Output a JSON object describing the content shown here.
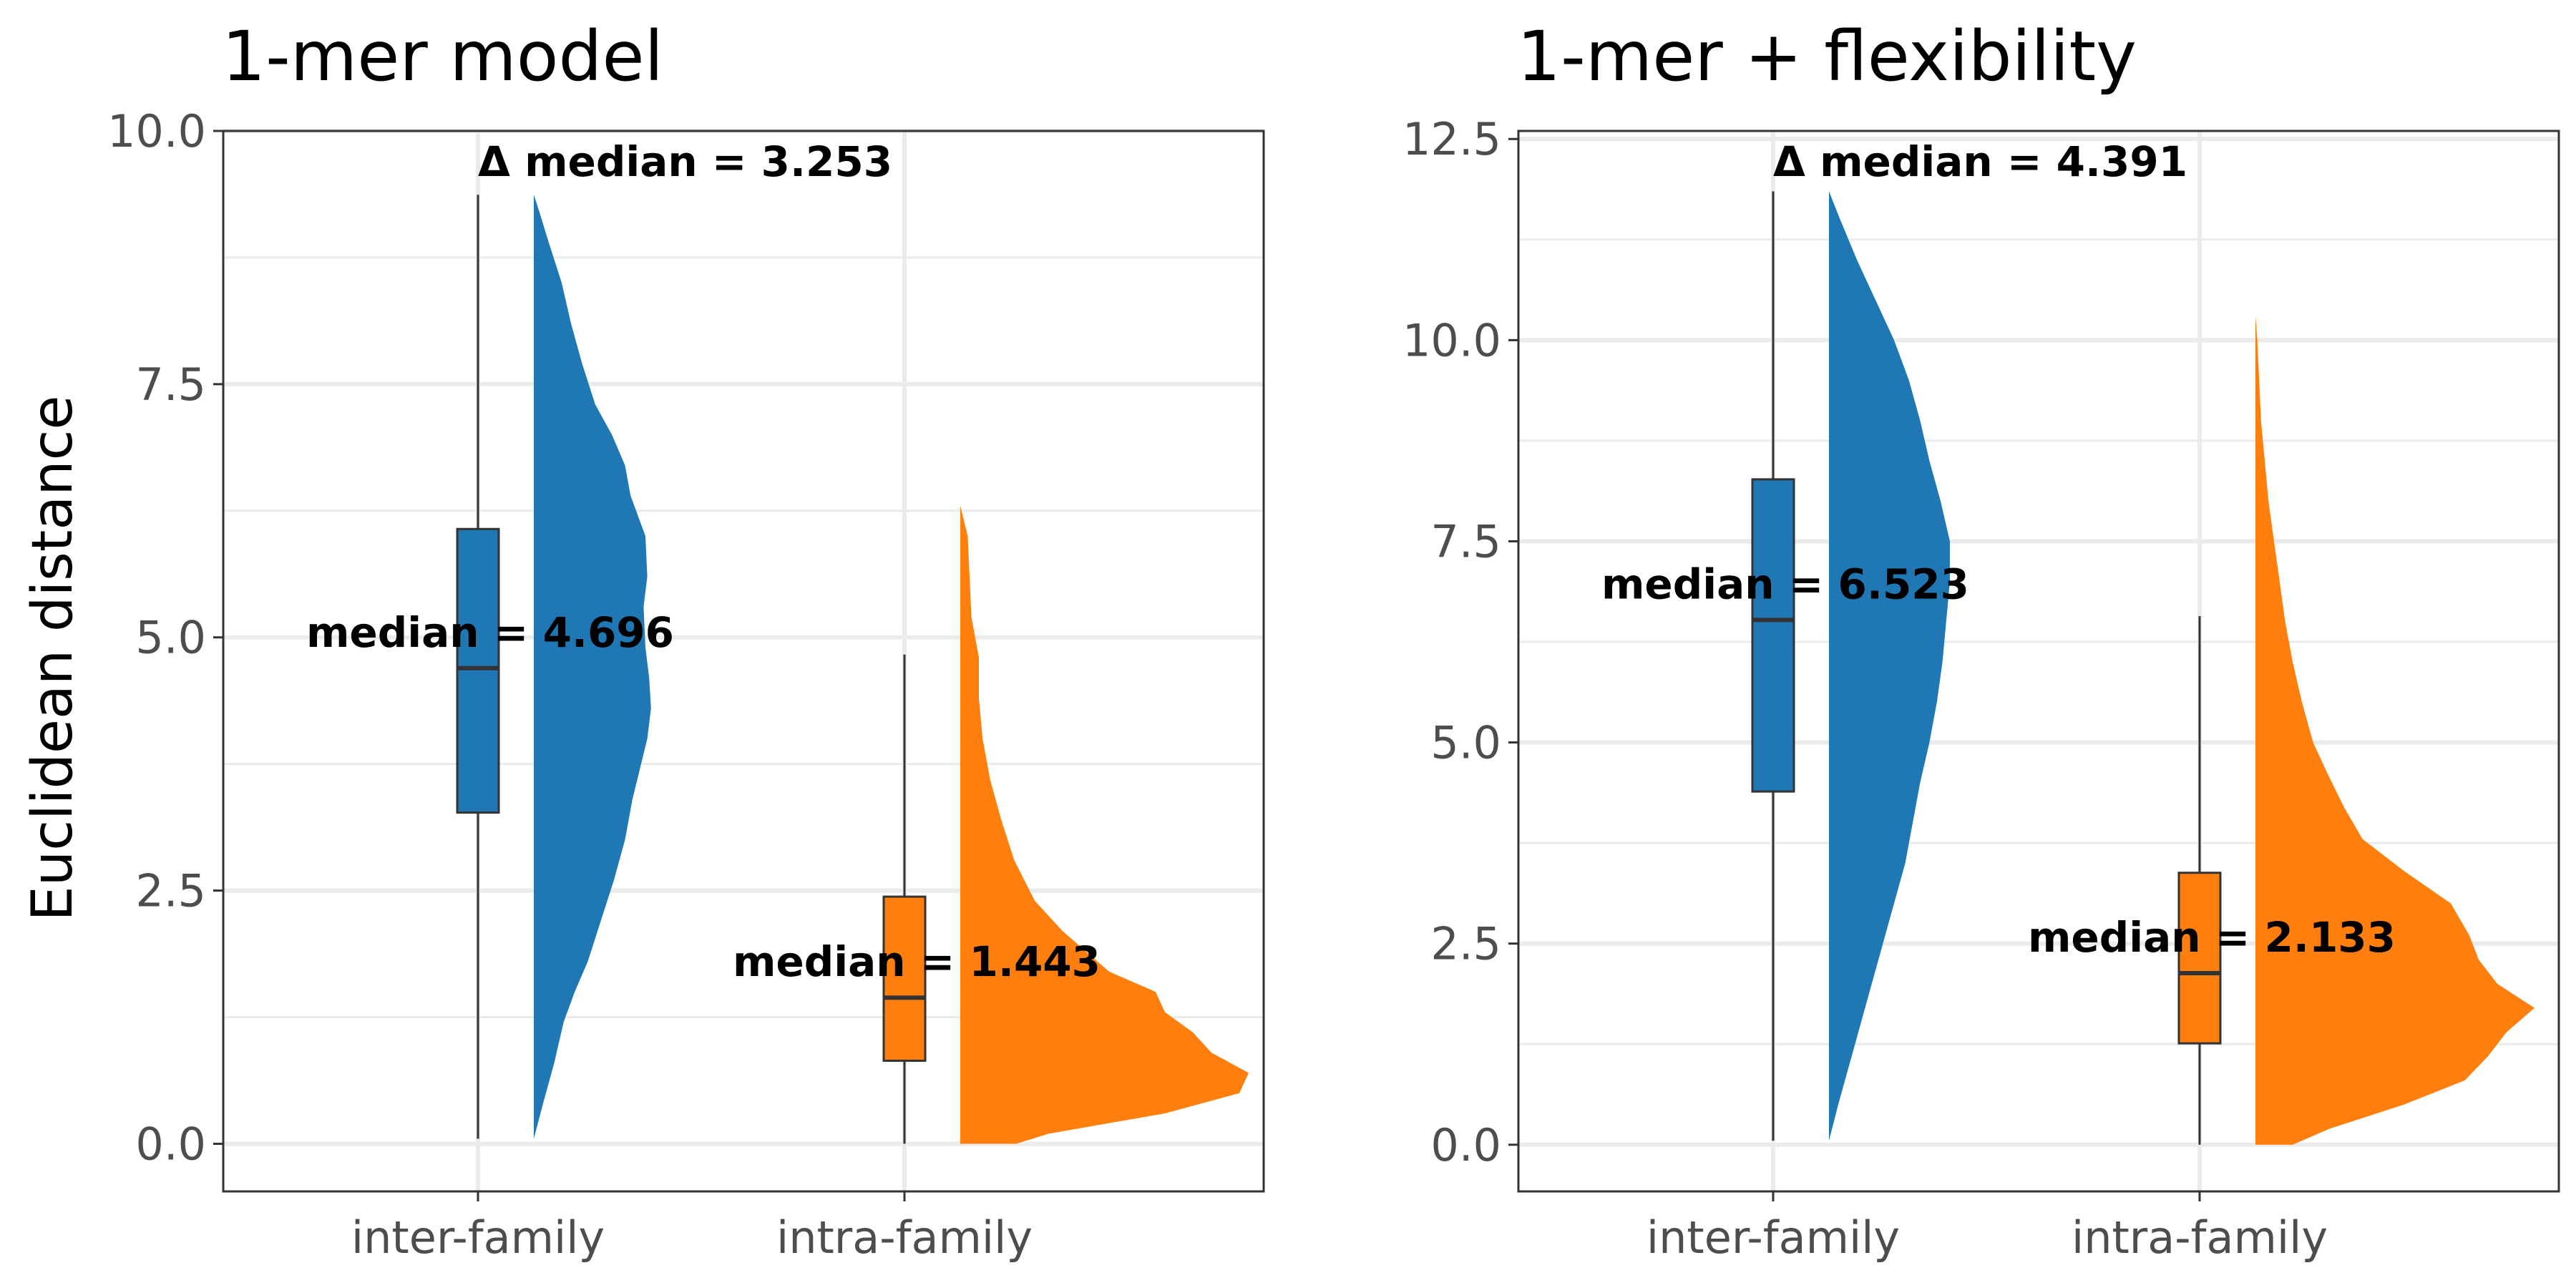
{
  "chart_data": [
    {
      "type": "raincloud",
      "title": "1-mer model",
      "ylabel": "Euclidean distance",
      "ylim": [
        -0.47,
        10.0
      ],
      "yticks": [
        0.0,
        2.5,
        5.0,
        7.5,
        10.0
      ],
      "ytick_labels": [
        "0.0",
        "2.5",
        "5.0",
        "7.5",
        "10.0"
      ],
      "grid": true,
      "categories": [
        "inter-family",
        "intra-family"
      ],
      "delta_label": "Δ median = 3.253",
      "groups": [
        {
          "name": "inter-family",
          "color": "#1f77b4",
          "box": {
            "min": 0.05,
            "q1": 3.27,
            "median": 4.696,
            "q3": 6.07,
            "max": 9.37
          },
          "median_label": "median = 4.696",
          "density": {
            "y": [
              0.05,
              0.4,
              0.8,
              1.2,
              1.5,
              1.8,
              2.2,
              2.6,
              3.0,
              3.4,
              3.7,
              4.0,
              4.3,
              4.6,
              4.9,
              5.3,
              5.6,
              6.0,
              6.4,
              6.7,
              7.0,
              7.3,
              7.7,
              8.1,
              8.5,
              8.9,
              9.2,
              9.37
            ],
            "w": [
              0.0,
              0.1,
              0.22,
              0.32,
              0.44,
              0.58,
              0.72,
              0.86,
              0.98,
              1.06,
              1.14,
              1.22,
              1.26,
              1.24,
              1.2,
              1.18,
              1.22,
              1.2,
              1.04,
              0.98,
              0.84,
              0.66,
              0.52,
              0.4,
              0.3,
              0.16,
              0.06,
              0.0
            ]
          }
        },
        {
          "name": "intra-family",
          "color": "#ff7f0e",
          "box": {
            "min": 0.0,
            "q1": 0.82,
            "median": 1.443,
            "q3": 2.44,
            "max": 4.83
          },
          "median_label": "median = 1.443",
          "density": {
            "y": [
              0.0,
              0.1,
              0.3,
              0.5,
              0.7,
              0.9,
              1.1,
              1.3,
              1.5,
              1.7,
              1.9,
              2.1,
              2.4,
              2.8,
              3.2,
              3.6,
              4.0,
              4.4,
              4.8,
              5.2,
              5.6,
              6.0,
              6.3
            ],
            "w": [
              0.6,
              0.95,
              2.2,
              3.0,
              3.1,
              2.7,
              2.5,
              2.2,
              2.1,
              1.6,
              1.35,
              1.1,
              0.8,
              0.58,
              0.44,
              0.32,
              0.24,
              0.2,
              0.2,
              0.12,
              0.1,
              0.08,
              0.0
            ]
          }
        }
      ]
    },
    {
      "type": "raincloud",
      "title": "1-mer + flexibility",
      "ylabel": "",
      "ylim": [
        -0.58,
        12.6
      ],
      "yticks": [
        0.0,
        2.5,
        5.0,
        7.5,
        10.0,
        12.5
      ],
      "ytick_labels": [
        "0.0",
        "2.5",
        "5.0",
        "7.5",
        "10.0",
        "12.5"
      ],
      "grid": true,
      "categories": [
        "inter-family",
        "intra-family"
      ],
      "delta_label": "Δ median = 4.391",
      "groups": [
        {
          "name": "inter-family",
          "color": "#1f77b4",
          "box": {
            "min": 0.05,
            "q1": 4.39,
            "median": 6.523,
            "q3": 8.27,
            "max": 11.85
          },
          "median_label": "median = 6.523",
          "density": {
            "y": [
              0.05,
              0.5,
              1.0,
              1.5,
              2.0,
              2.5,
              3.0,
              3.5,
              4.0,
              4.5,
              5.0,
              5.5,
              6.0,
              6.5,
              7.0,
              7.5,
              8.0,
              8.5,
              9.0,
              9.5,
              10.0,
              10.5,
              11.0,
              11.5,
              11.85
            ],
            "w": [
              0.0,
              0.1,
              0.22,
              0.34,
              0.46,
              0.58,
              0.7,
              0.82,
              0.9,
              0.98,
              1.08,
              1.16,
              1.22,
              1.26,
              1.3,
              1.3,
              1.2,
              1.08,
              0.98,
              0.86,
              0.7,
              0.5,
              0.3,
              0.12,
              0.0
            ]
          }
        },
        {
          "name": "intra-family",
          "color": "#ff7f0e",
          "box": {
            "min": 0.0,
            "q1": 1.26,
            "median": 2.133,
            "q3": 3.38,
            "max": 6.57
          },
          "median_label": "median = 2.133",
          "density": {
            "y": [
              0.0,
              0.2,
              0.5,
              0.8,
              1.1,
              1.4,
              1.7,
              2.0,
              2.3,
              2.6,
              3.0,
              3.4,
              3.8,
              4.2,
              4.6,
              5.0,
              5.5,
              6.0,
              6.5,
              7.0,
              7.5,
              8.0,
              8.5,
              9.0,
              9.5,
              10.0,
              10.3
            ],
            "w": [
              0.4,
              0.8,
              1.6,
              2.25,
              2.5,
              2.7,
              3.0,
              2.6,
              2.4,
              2.3,
              2.1,
              1.6,
              1.15,
              0.95,
              0.78,
              0.62,
              0.5,
              0.4,
              0.32,
              0.26,
              0.2,
              0.14,
              0.1,
              0.06,
              0.04,
              0.02,
              0.0
            ]
          }
        }
      ]
    }
  ]
}
